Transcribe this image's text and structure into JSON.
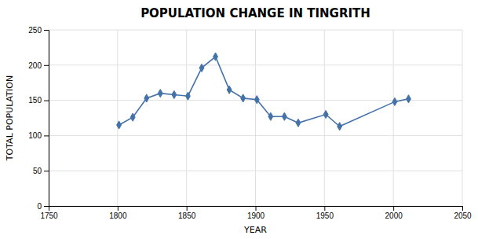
{
  "chart_data": {
    "type": "line",
    "title": "POPULATION CHANGE IN TINGRITH",
    "xlabel": "YEAR",
    "ylabel": "TOTAL POPULATION",
    "x": [
      1801,
      1811,
      1821,
      1831,
      1841,
      1851,
      1861,
      1871,
      1881,
      1891,
      1901,
      1911,
      1921,
      1931,
      1951,
      1961,
      2001,
      2011
    ],
    "values": [
      115,
      126,
      153,
      160,
      158,
      156,
      196,
      212,
      165,
      153,
      151,
      127,
      127,
      118,
      130,
      113,
      148,
      152
    ],
    "color": "#4472a8",
    "marker": "diamond",
    "xlim": [
      1750,
      2050
    ],
    "ylim": [
      0,
      250
    ],
    "xticks": [
      1750,
      1800,
      1850,
      1900,
      1950,
      2000,
      2050
    ],
    "yticks": [
      0,
      50,
      100,
      150,
      200,
      250
    ],
    "grid": true
  }
}
